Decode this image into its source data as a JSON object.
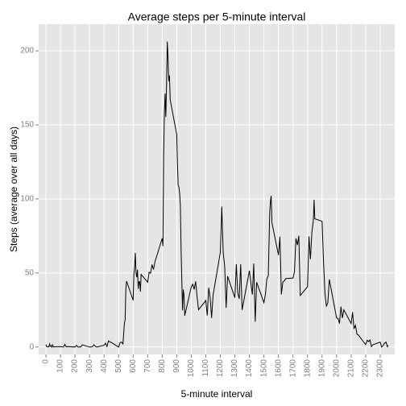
{
  "chart_data": {
    "type": "line",
    "title": "Average steps per 5-minute interval",
    "x_label": "5-minute interval",
    "y_label": "Steps (average over all days)",
    "x": [
      0,
      5,
      10,
      15,
      20,
      25,
      30,
      35,
      40,
      45,
      50,
      55,
      100,
      110,
      120,
      130,
      140,
      150,
      200,
      210,
      220,
      230,
      240,
      250,
      300,
      310,
      320,
      330,
      340,
      350,
      400,
      410,
      420,
      430,
      440,
      450,
      500,
      510,
      520,
      530,
      540,
      545,
      550,
      555,
      600,
      605,
      610,
      615,
      620,
      625,
      630,
      635,
      640,
      645,
      650,
      655,
      700,
      710,
      720,
      730,
      740,
      750,
      800,
      805,
      810,
      815,
      820,
      825,
      830,
      835,
      840,
      845,
      850,
      855,
      900,
      905,
      910,
      915,
      920,
      925,
      930,
      935,
      940,
      945,
      950,
      955,
      1000,
      1010,
      1020,
      1030,
      1040,
      1050,
      1100,
      1110,
      1120,
      1130,
      1140,
      1150,
      1200,
      1210,
      1220,
      1230,
      1240,
      1250,
      1300,
      1310,
      1320,
      1330,
      1340,
      1350,
      1400,
      1410,
      1420,
      1430,
      1440,
      1450,
      1500,
      1510,
      1520,
      1530,
      1540,
      1545,
      1550,
      1555,
      1600,
      1610,
      1620,
      1630,
      1640,
      1650,
      1700,
      1710,
      1720,
      1730,
      1740,
      1750,
      1800,
      1810,
      1820,
      1830,
      1840,
      1845,
      1850,
      1900,
      1910,
      1920,
      1930,
      1940,
      1950,
      2000,
      2010,
      2020,
      2030,
      2040,
      2050,
      2100,
      2110,
      2120,
      2130,
      2140,
      2150,
      2200,
      2210,
      2220,
      2230,
      2240,
      2250,
      2300,
      2310,
      2320,
      2330,
      2340,
      2350,
      2355
    ],
    "series": [
      {
        "color": "#000000",
        "values": [
          1.7,
          0.3,
          0.1,
          0.2,
          0.1,
          2.1,
          0.5,
          0.9,
          0,
          1.5,
          0.3,
          0.1,
          0.3,
          0.2,
          0,
          1.8,
          0.2,
          0.3,
          0,
          1.1,
          0,
          0,
          0,
          1.5,
          0,
          0,
          0.2,
          1.6,
          0.5,
          0,
          1.2,
          2.6,
          0.3,
          4.1,
          3.5,
          3.1,
          0,
          3,
          3.3,
          2.1,
          16,
          18.3,
          39.5,
          44.5,
          31.5,
          49.3,
          53.8,
          63.5,
          50,
          47.1,
          52.2,
          39.3,
          44,
          44.2,
          37.4,
          49,
          43.8,
          50.5,
          49.9,
          55.7,
          52.3,
          57.5,
          73.4,
          68.2,
          129.4,
          157.5,
          171.2,
          155.4,
          177.3,
          206.2,
          195.9,
          179.6,
          183.4,
          167,
          143.5,
          124,
          109.1,
          108.1,
          103.7,
          96,
          66.2,
          45.2,
          24.8,
          38.8,
          35,
          21.1,
          40.6,
          42.4,
          38.9,
          44.3,
          34.1,
          25.2,
          31.4,
          21.3,
          40,
          33.4,
          19.6,
          35,
          63.9,
          94.8,
          63.4,
          54.5,
          26.5,
          47.8,
          33.3,
          56,
          36.5,
          32.5,
          56,
          25.1,
          51.5,
          43.4,
          35.5,
          56.4,
          17.1,
          43.8,
          30,
          35.5,
          46,
          48.1,
          91,
          98.7,
          102.1,
          84,
          62.1,
          74.5,
          35.5,
          43.9,
          44.7,
          46.2,
          46.6,
          50.7,
          73.4,
          68.9,
          75.1,
          34.8,
          40.7,
          74.7,
          59.3,
          77.4,
          85.3,
          99.5,
          86.6,
          84.9,
          58,
          36.1,
          27.4,
          30.2,
          45.7,
          19.6,
          19.3,
          15.9,
          27.3,
          19.6,
          25.1,
          15.9,
          23.5,
          12.3,
          14.7,
          8.7,
          8.1,
          1.6,
          4.6,
          3.7,
          4.8,
          0.3,
          1.6,
          3.3,
          0,
          1,
          2.6,
          3.3,
          0.2,
          1.1
        ]
      }
    ],
    "xlim": [
      -50,
      2400
    ],
    "ylim": [
      -5,
      218
    ],
    "xticks": [
      0,
      100,
      200,
      300,
      400,
      500,
      600,
      700,
      800,
      900,
      1000,
      1100,
      1200,
      1300,
      1400,
      1500,
      1600,
      1700,
      1800,
      1900,
      2000,
      2100,
      2200,
      2300
    ],
    "yticks": [
      0,
      50,
      100,
      150,
      200
    ],
    "grid": true
  }
}
